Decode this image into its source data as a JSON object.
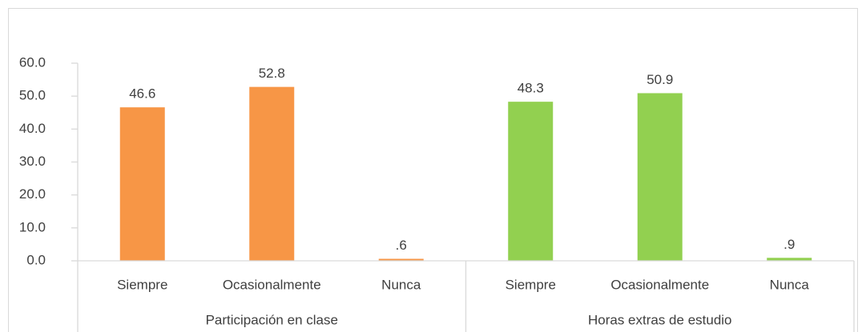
{
  "chart_data": {
    "type": "bar",
    "series": [
      {
        "name": "Participación en clase",
        "color": "#f79646",
        "categories": [
          "Siempre",
          "Ocasionalmente",
          "Nunca"
        ],
        "values": [
          46.6,
          52.8,
          0.6
        ],
        "value_labels": [
          "46.6",
          "52.8",
          ".6"
        ]
      },
      {
        "name": "Horas extras de estudio",
        "color": "#92d050",
        "categories": [
          "Siempre",
          "Ocasionalmente",
          "Nunca"
        ],
        "values": [
          48.3,
          50.9,
          0.9
        ],
        "value_labels": [
          "48.3",
          "50.9",
          ".9"
        ]
      }
    ],
    "ylim": [
      0,
      60
    ],
    "yticks": [
      {
        "value": 0,
        "label": "0.0"
      },
      {
        "value": 10,
        "label": "10.0"
      },
      {
        "value": 20,
        "label": "20.0"
      },
      {
        "value": 30,
        "label": "30.0"
      },
      {
        "value": 40,
        "label": "40.0"
      },
      {
        "value": 50,
        "label": "50.0"
      },
      {
        "value": 60,
        "label": "60.0"
      }
    ],
    "grid": false
  }
}
